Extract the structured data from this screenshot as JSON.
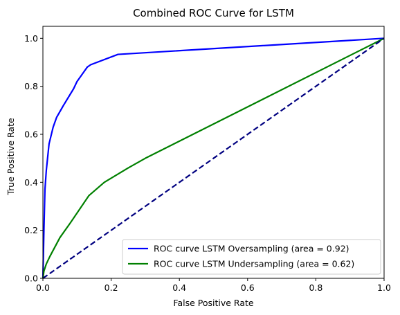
{
  "chart_data": {
    "type": "line",
    "title": "Combined ROC Curve for LSTM",
    "xlabel": "False Positive Rate",
    "ylabel": "True Positive Rate",
    "xlim": [
      0.0,
      1.0
    ],
    "ylim": [
      0.0,
      1.05
    ],
    "xticks": [
      0.0,
      0.2,
      0.4,
      0.6,
      0.8,
      1.0
    ],
    "yticks": [
      0.0,
      0.2,
      0.4,
      0.6,
      0.8,
      1.0
    ],
    "xtick_labels": [
      "0.0",
      "0.2",
      "0.4",
      "0.6",
      "0.8",
      "1.0"
    ],
    "ytick_labels": [
      "0.0",
      "0.2",
      "0.4",
      "0.6",
      "0.8",
      "1.0"
    ],
    "grid": false,
    "legend_position": "lower-right",
    "series": [
      {
        "name": "ROC curve LSTM Oversampling (area = 0.92)",
        "color": "#0000ff",
        "style": "solid",
        "points": [
          [
            0.0,
            0.0
          ],
          [
            0.003,
            0.2
          ],
          [
            0.006,
            0.37
          ],
          [
            0.01,
            0.45
          ],
          [
            0.018,
            0.56
          ],
          [
            0.03,
            0.63
          ],
          [
            0.04,
            0.67
          ],
          [
            0.06,
            0.72
          ],
          [
            0.09,
            0.79
          ],
          [
            0.1,
            0.82
          ],
          [
            0.12,
            0.86
          ],
          [
            0.13,
            0.88
          ],
          [
            0.14,
            0.89
          ],
          [
            0.22,
            0.933
          ],
          [
            1.0,
            1.0
          ]
        ]
      },
      {
        "name": "ROC curve LSTM Undersampling (area = 0.62)",
        "color": "#008000",
        "style": "solid",
        "points": [
          [
            0.0,
            0.0
          ],
          [
            0.003,
            0.03
          ],
          [
            0.01,
            0.06
          ],
          [
            0.02,
            0.09
          ],
          [
            0.05,
            0.17
          ],
          [
            0.08,
            0.23
          ],
          [
            0.135,
            0.345
          ],
          [
            0.18,
            0.4
          ],
          [
            0.25,
            0.46
          ],
          [
            0.3,
            0.5
          ],
          [
            1.0,
            1.0
          ]
        ]
      },
      {
        "name": "",
        "color": "#000080",
        "style": "dashed",
        "points": [
          [
            0.0,
            0.0
          ],
          [
            1.0,
            1.0
          ]
        ]
      }
    ]
  }
}
